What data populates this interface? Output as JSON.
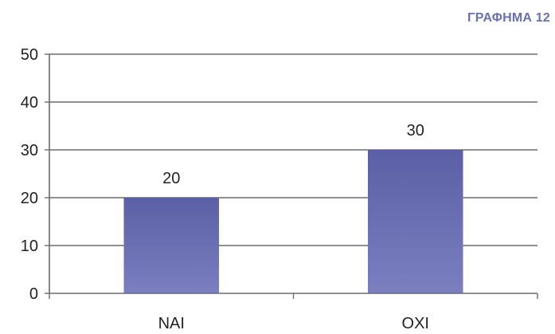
{
  "chart_data": {
    "type": "bar",
    "title": "ΓΡΑΦΗΜΑ 12",
    "categories": [
      "ΝΑΙ",
      "ΟΧΙ"
    ],
    "values": [
      20,
      30
    ],
    "data_labels": [
      "20",
      "30"
    ],
    "ylim": [
      0,
      50
    ],
    "yticks": [
      0,
      10,
      20,
      30,
      40,
      50
    ],
    "xlabel": "",
    "ylabel": "",
    "grid": true,
    "legend": "none",
    "bar_color": "#5b60a6",
    "bar_color_light": "#7a7fc0"
  }
}
